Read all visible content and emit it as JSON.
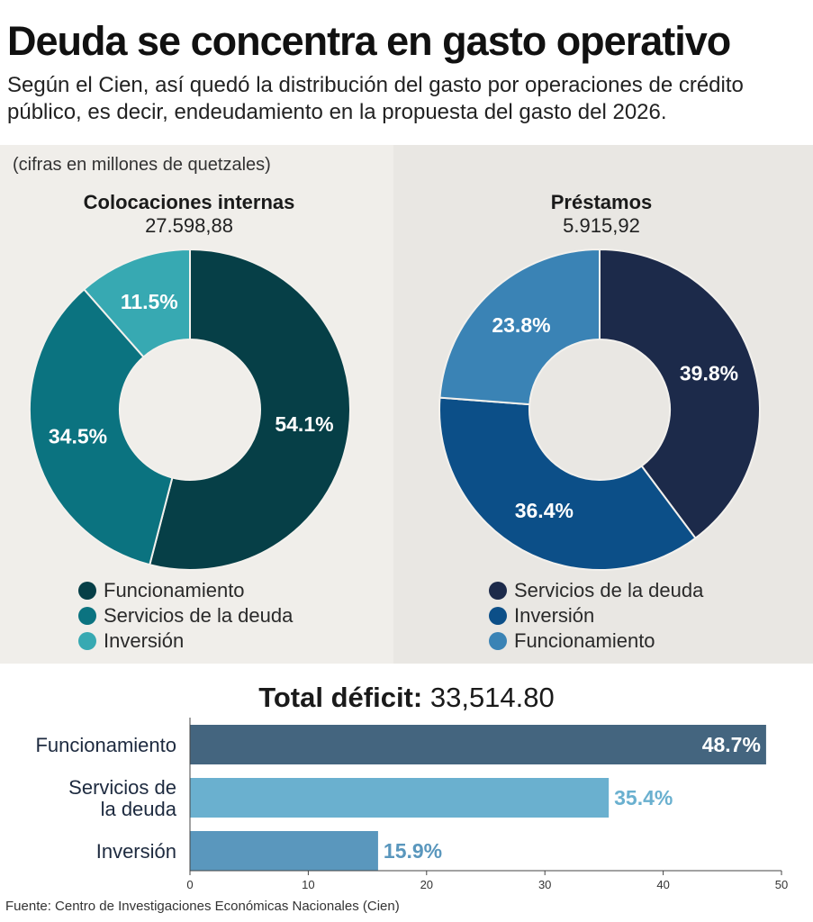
{
  "title": "Deuda se concentra en gasto operativo",
  "subtitle": "Según el Cien, así quedó la distribución del gasto por operaciones de crédito público, es decir, endeudamiento en la propuesta del gasto del  2026.",
  "units_note": "(cifras en millones de quetzales)",
  "heading": {
    "label": "Total déficit:",
    "value": "33,514.80"
  },
  "source": "Fuente: Centro de Investigaciones Económicas Nacionales (Cien)",
  "chart_data": [
    {
      "type": "pie",
      "title": "Colocaciones internas",
      "total": "27.598,88",
      "slices": [
        {
          "label": "Funcionamiento",
          "value": 54.1,
          "display": "54.1%",
          "color": "#063f47"
        },
        {
          "label": "Servicios de la deuda",
          "value": 34.5,
          "display": "34.5%",
          "color": "#0b7380"
        },
        {
          "label": "Inversión",
          "value": 11.5,
          "display": "11.5%",
          "color": "#37a9b2"
        }
      ]
    },
    {
      "type": "pie",
      "title": "Préstamos",
      "total": "5.915,92",
      "slices": [
        {
          "label": "Servicios de la deuda",
          "value": 39.8,
          "display": "39.8%",
          "color": "#1c2a4a"
        },
        {
          "label": "Inversión",
          "value": 36.4,
          "display": "36.4%",
          "color": "#0c4f88"
        },
        {
          "label": "Funcionamiento",
          "value": 23.8,
          "display": "23.8%",
          "color": "#3a83b5"
        }
      ]
    },
    {
      "type": "bar",
      "title": "Total déficit",
      "categories": [
        "Funcionamiento",
        "Servicios de la deuda",
        "Inversión"
      ],
      "category_lines": [
        [
          "Funcionamiento"
        ],
        [
          "Servicios de",
          "la deuda"
        ],
        [
          "Inversión"
        ]
      ],
      "values": [
        48.7,
        35.4,
        15.9
      ],
      "value_labels": [
        "48.7%",
        "35.4%",
        "15.9%"
      ],
      "colors": [
        "#44657f",
        "#6ab0cf",
        "#5a97bd"
      ],
      "label_colors": [
        "#ffffff",
        "#6ab0cf",
        "#5a97bd"
      ],
      "xlim": [
        0,
        50
      ],
      "xticks": [
        0,
        10,
        20,
        30,
        40,
        50
      ]
    }
  ]
}
